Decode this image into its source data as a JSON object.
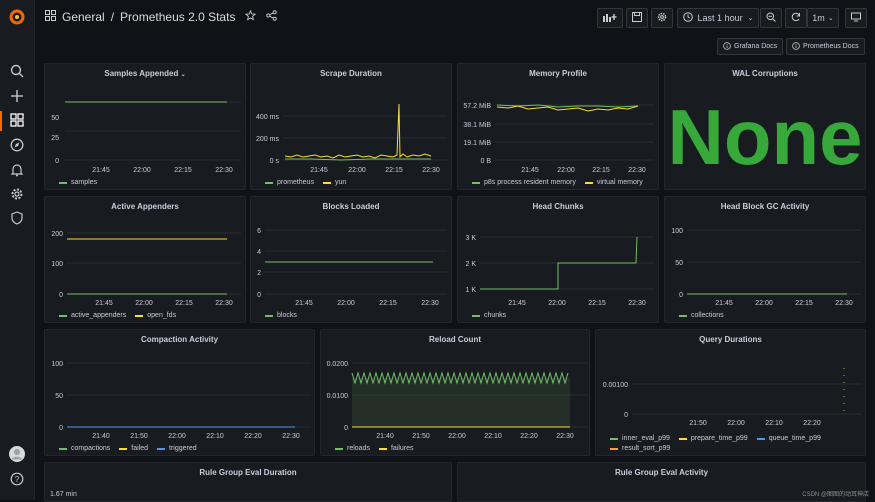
{
  "app": {
    "breadcrumb_folder": "General",
    "breadcrumb_sep": "/",
    "dashboard_title": "Prometheus 2.0 Stats",
    "time_range": "Last 1 hour",
    "refresh_interval": "1m"
  },
  "links": {
    "grafana_docs": "Grafana Docs",
    "prometheus_docs": "Prometheus Docs"
  },
  "colors": {
    "green": "#73bf69",
    "yellow": "#fade2a",
    "blue": "#5794f2",
    "orange": "#ff9830",
    "stat_green": "#37a83a"
  },
  "icons": [
    "grafana-logo-icon",
    "search-icon",
    "plus-icon",
    "dashboards-icon",
    "explore-icon",
    "bell-icon",
    "gear-icon",
    "shield-icon",
    "avatar",
    "help-icon",
    "grid-icon",
    "star-icon",
    "share-icon",
    "add-panel-icon",
    "save-icon",
    "settings-icon",
    "clock-icon",
    "zoom-out-icon",
    "refresh-icon",
    "tv-icon",
    "info-icon"
  ],
  "panels": {
    "samples_appended": {
      "title": "Samples Appended",
      "legend": [
        "samples"
      ],
      "chart_data": {
        "type": "line",
        "x": [
          "21:45",
          "22:00",
          "22:15",
          "22:30"
        ],
        "ylim": [
          0,
          60
        ],
        "yticks": [
          "0",
          "25",
          "50"
        ],
        "series": [
          {
            "name": "samples",
            "values": [
              50,
              50,
              50,
              50
            ]
          }
        ]
      }
    },
    "scrape_duration": {
      "title": "Scrape Duration",
      "legend": [
        "prometheus",
        "yun"
      ],
      "chart_data": {
        "type": "line",
        "x": [
          "21:45",
          "22:00",
          "22:15",
          "22:30"
        ],
        "yticks": [
          "0 s",
          "200 ms",
          "400 ms"
        ],
        "series": [
          {
            "name": "prometheus",
            "values": [
              10,
              10,
              10,
              10
            ]
          },
          {
            "name": "yun",
            "values": [
              20,
              25,
              20,
              480
            ]
          }
        ]
      }
    },
    "memory_profile": {
      "title": "Memory Profile",
      "legend": [
        "p8s process resident memory",
        "virtual memory"
      ],
      "chart_data": {
        "type": "line",
        "x": [
          "21:45",
          "22:00",
          "22:15",
          "22:30"
        ],
        "yticks": [
          "0 B",
          "19.1 MiB",
          "38.1 MiB",
          "57.2 MiB"
        ],
        "series": [
          {
            "name": "p8s process resident memory",
            "values": [
              57.2,
              57.2,
              57.2,
              57.2
            ]
          },
          {
            "name": "virtual memory",
            "values": [
              56,
              55,
              55,
              57
            ]
          }
        ]
      }
    },
    "wal_corruptions": {
      "title": "WAL Corruptions",
      "value": "None"
    },
    "active_appenders": {
      "title": "Active Appenders",
      "legend": [
        "active_appenders",
        "open_fds"
      ],
      "chart_data": {
        "type": "line",
        "x": [
          "21:45",
          "22:00",
          "22:15",
          "22:30"
        ],
        "yticks": [
          "0",
          "100",
          "200"
        ],
        "series": [
          {
            "name": "active_appenders",
            "values": [
              0,
              0,
              0,
              0
            ]
          },
          {
            "name": "open_fds",
            "values": [
              180,
              180,
              180,
              180
            ]
          }
        ]
      }
    },
    "blocks_loaded": {
      "title": "Blocks Loaded",
      "legend": [
        "blocks"
      ],
      "chart_data": {
        "type": "line",
        "x": [
          "21:45",
          "22:00",
          "22:15",
          "22:30"
        ],
        "yticks": [
          "0",
          "2",
          "4",
          "6"
        ],
        "series": [
          {
            "name": "blocks",
            "values": [
              3,
              3,
              3,
              3
            ]
          }
        ]
      }
    },
    "head_chunks": {
      "title": "Head Chunks",
      "legend": [
        "chunks"
      ],
      "chart_data": {
        "type": "line",
        "x": [
          "21:45",
          "22:00",
          "22:15",
          "22:30"
        ],
        "yticks": [
          "1 K",
          "2 K",
          "3 K"
        ],
        "series": [
          {
            "name": "chunks",
            "values": [
              1000,
              1000,
              2000,
              3000
            ]
          }
        ]
      }
    },
    "head_block_gc": {
      "title": "Head Block GC Activity",
      "legend": [
        "collections"
      ],
      "chart_data": {
        "type": "line",
        "x": [
          "21:45",
          "22:00",
          "22:15",
          "22:30"
        ],
        "yticks": [
          "0",
          "50",
          "100"
        ],
        "series": [
          {
            "name": "collections",
            "values": [
              0,
              0,
              0,
              0
            ]
          }
        ]
      }
    },
    "compaction_activity": {
      "title": "Compaction Activity",
      "legend": [
        "compactions",
        "failed",
        "triggered"
      ],
      "chart_data": {
        "type": "line",
        "x": [
          "21:40",
          "21:50",
          "22:00",
          "22:10",
          "22:20",
          "22:30"
        ],
        "yticks": [
          "0",
          "50",
          "100"
        ],
        "series": [
          {
            "name": "compactions",
            "values": [
              0,
              0,
              0,
              0,
              0,
              0
            ]
          },
          {
            "name": "failed",
            "values": [
              0,
              0,
              0,
              0,
              0,
              0
            ]
          },
          {
            "name": "triggered",
            "values": [
              0,
              0,
              0,
              0,
              0,
              0
            ]
          }
        ]
      }
    },
    "reload_count": {
      "title": "Reload Count",
      "legend": [
        "reloads",
        "failures"
      ],
      "chart_data": {
        "type": "area",
        "x": [
          "21:40",
          "21:50",
          "22:00",
          "22:10",
          "22:20",
          "22:30"
        ],
        "yticks": [
          "0",
          "0.0100",
          "0.0200"
        ],
        "series": [
          {
            "name": "reloads",
            "values": [
              0.0175,
              0.0175,
              0.0175,
              0.0175,
              0.0175,
              0.0175
            ]
          },
          {
            "name": "failures",
            "values": [
              0,
              0,
              0,
              0,
              0,
              0
            ]
          }
        ]
      }
    },
    "query_durations": {
      "title": "Query Durations",
      "legend": [
        "inner_eval_p99",
        "prepare_time_p99",
        "queue_time_p99",
        "result_sort_p99"
      ],
      "chart_data": {
        "type": "line",
        "x": [
          "21:50",
          "22:00",
          "22:10",
          "22:20"
        ],
        "yticks": [
          "0",
          "0.00100"
        ],
        "series": [
          {
            "name": "inner_eval_p99",
            "values": [
              0,
              0,
              0,
              0
            ]
          },
          {
            "name": "prepare_time_p99",
            "values": [
              0,
              0,
              0,
              0
            ]
          },
          {
            "name": "queue_time_p99",
            "values": [
              0,
              0,
              0,
              0
            ]
          },
          {
            "name": "result_sort_p99",
            "values": [
              0,
              0,
              0,
              0
            ]
          }
        ]
      }
    },
    "rule_group_eval_duration": {
      "title": "Rule Group Eval Duration",
      "ytick_top": "1.67 min"
    },
    "rule_group_eval_activity": {
      "title": "Rule Group Eval Activity"
    }
  },
  "watermark": "CSDN @图图的动耳神店"
}
